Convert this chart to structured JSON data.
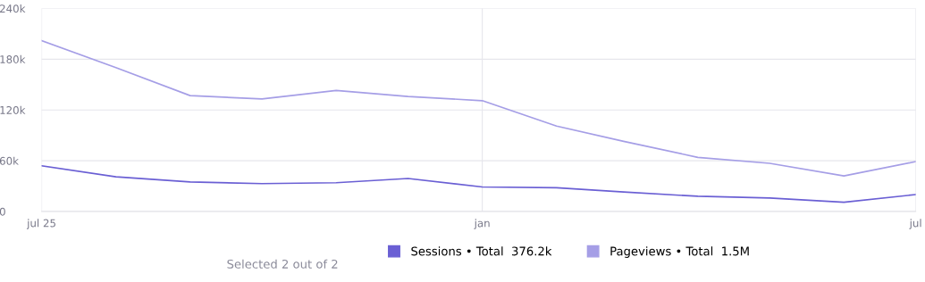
{
  "chart_data": {
    "type": "line",
    "x": [
      "2025-07",
      "2025-08",
      "2025-09",
      "2025-10",
      "2025-11",
      "2025-12",
      "2026-01",
      "2026-02",
      "2026-03",
      "2026-04",
      "2026-05",
      "2026-06",
      "2026-07"
    ],
    "series": [
      {
        "name": "Sessions • Total  376.2k",
        "color": "#6a5fd4",
        "values": [
          54000,
          41000,
          35000,
          33000,
          34000,
          39000,
          29000,
          28000,
          23000,
          18000,
          16000,
          11000,
          20000
        ]
      },
      {
        "name": "Pageviews • Total  1.5M",
        "color": "#a59ee6",
        "values": [
          202000,
          170000,
          137000,
          133000,
          143000,
          136000,
          131000,
          101000,
          83000,
          64000,
          57000,
          42000,
          59000
        ]
      }
    ],
    "xlim": [
      "2025-07",
      "2026-07"
    ],
    "xticks": [
      {
        "value": "2025-07",
        "label": "jul 25"
      },
      {
        "value": "2026-01",
        "label": "jan"
      },
      {
        "value": "2026-07",
        "label": "jul"
      }
    ],
    "ylim": [
      0,
      240000
    ],
    "yticks": [
      0,
      {
        "value": 60000,
        "label": "60k"
      },
      {
        "value": 120000,
        "label": "120k"
      },
      {
        "value": 180000,
        "label": "180k"
      },
      {
        "value": 240000,
        "label": "240k"
      }
    ],
    "grid": true,
    "legend": "bottom",
    "marker": "none",
    "line_style": "solid",
    "annotations": [
      "Selected 2 out of 2"
    ]
  }
}
